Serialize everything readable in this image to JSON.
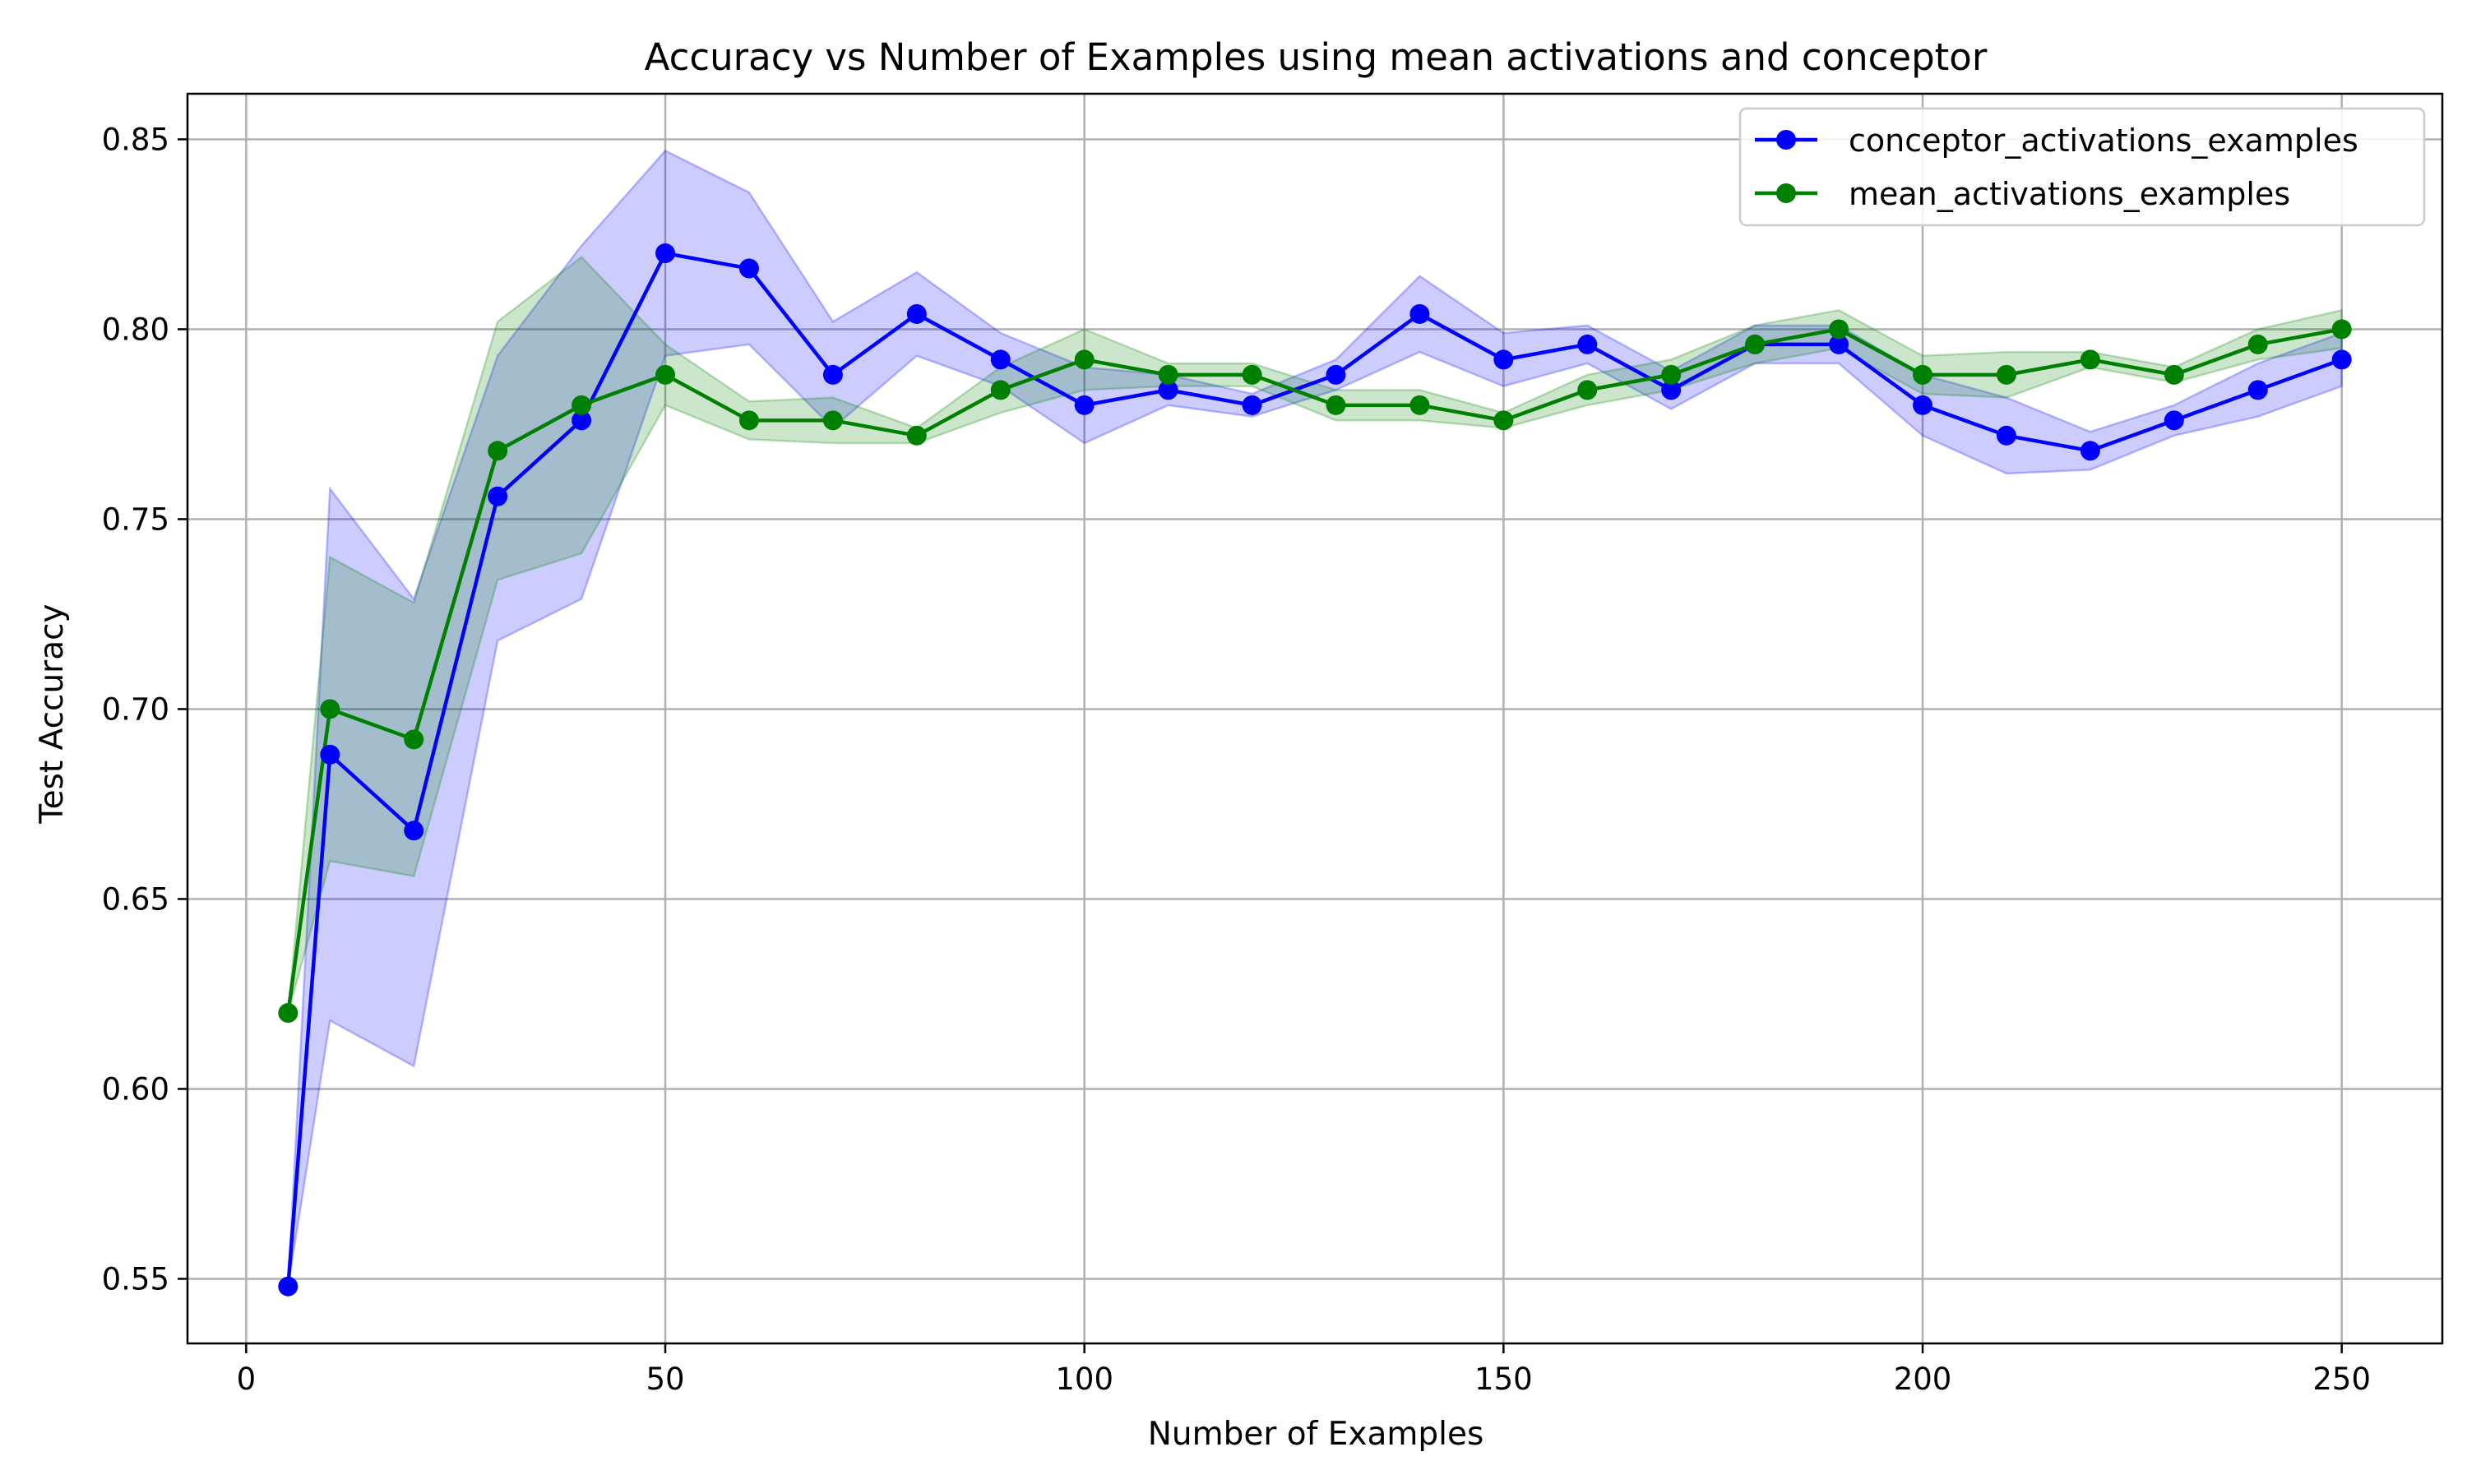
{
  "chart_data": {
    "type": "line",
    "title": "Accuracy vs Number of Examples using mean activations and conceptor",
    "xlabel": "Number of Examples",
    "ylabel": "Test Accuracy",
    "xlim": [
      -7,
      262
    ],
    "ylim": [
      0.533,
      0.862
    ],
    "xticks": [
      0,
      50,
      100,
      150,
      200,
      250
    ],
    "xtick_labels": [
      "0",
      "50",
      "100",
      "150",
      "200",
      "250"
    ],
    "yticks": [
      0.55,
      0.6,
      0.65,
      0.7,
      0.75,
      0.8,
      0.85
    ],
    "ytick_labels": [
      "0.55",
      "0.60",
      "0.65",
      "0.70",
      "0.75",
      "0.80",
      "0.85"
    ],
    "grid": true,
    "legend_position": "top-right",
    "x": [
      5,
      10,
      20,
      30,
      40,
      50,
      60,
      70,
      80,
      90,
      100,
      110,
      120,
      130,
      140,
      150,
      160,
      170,
      180,
      190,
      200,
      210,
      220,
      230,
      240,
      250
    ],
    "series": [
      {
        "name": "conceptor_activations_examples",
        "color": "#0000ff",
        "band_color": "#0000ff",
        "values": [
          0.548,
          0.688,
          0.668,
          0.756,
          0.776,
          0.82,
          0.816,
          0.788,
          0.804,
          0.792,
          0.78,
          0.784,
          0.78,
          0.788,
          0.804,
          0.792,
          0.796,
          0.784,
          0.796,
          0.796,
          0.78,
          0.772,
          0.768,
          0.776,
          0.784,
          0.792
        ],
        "lower": [
          0.548,
          0.618,
          0.606,
          0.718,
          0.729,
          0.793,
          0.796,
          0.774,
          0.793,
          0.785,
          0.77,
          0.78,
          0.777,
          0.784,
          0.794,
          0.785,
          0.791,
          0.779,
          0.791,
          0.791,
          0.772,
          0.762,
          0.763,
          0.772,
          0.777,
          0.785
        ],
        "upper": [
          0.548,
          0.758,
          0.729,
          0.793,
          0.822,
          0.847,
          0.836,
          0.802,
          0.815,
          0.799,
          0.79,
          0.788,
          0.783,
          0.792,
          0.814,
          0.799,
          0.801,
          0.789,
          0.801,
          0.801,
          0.788,
          0.782,
          0.773,
          0.78,
          0.791,
          0.799
        ]
      },
      {
        "name": "mean_activations_examples",
        "color": "#008000",
        "band_color": "#008000",
        "values": [
          0.62,
          0.7,
          0.692,
          0.768,
          0.78,
          0.788,
          0.776,
          0.776,
          0.772,
          0.784,
          0.792,
          0.788,
          0.788,
          0.78,
          0.78,
          0.776,
          0.784,
          0.788,
          0.796,
          0.8,
          0.788,
          0.788,
          0.792,
          0.788,
          0.796,
          0.8
        ],
        "lower": [
          0.62,
          0.66,
          0.656,
          0.734,
          0.741,
          0.78,
          0.771,
          0.77,
          0.77,
          0.778,
          0.784,
          0.785,
          0.785,
          0.776,
          0.776,
          0.774,
          0.78,
          0.784,
          0.791,
          0.795,
          0.783,
          0.782,
          0.79,
          0.786,
          0.792,
          0.795
        ],
        "upper": [
          0.62,
          0.74,
          0.728,
          0.802,
          0.819,
          0.796,
          0.781,
          0.782,
          0.774,
          0.79,
          0.8,
          0.791,
          0.791,
          0.784,
          0.784,
          0.778,
          0.788,
          0.792,
          0.801,
          0.805,
          0.793,
          0.794,
          0.794,
          0.79,
          0.8,
          0.805
        ]
      }
    ]
  }
}
